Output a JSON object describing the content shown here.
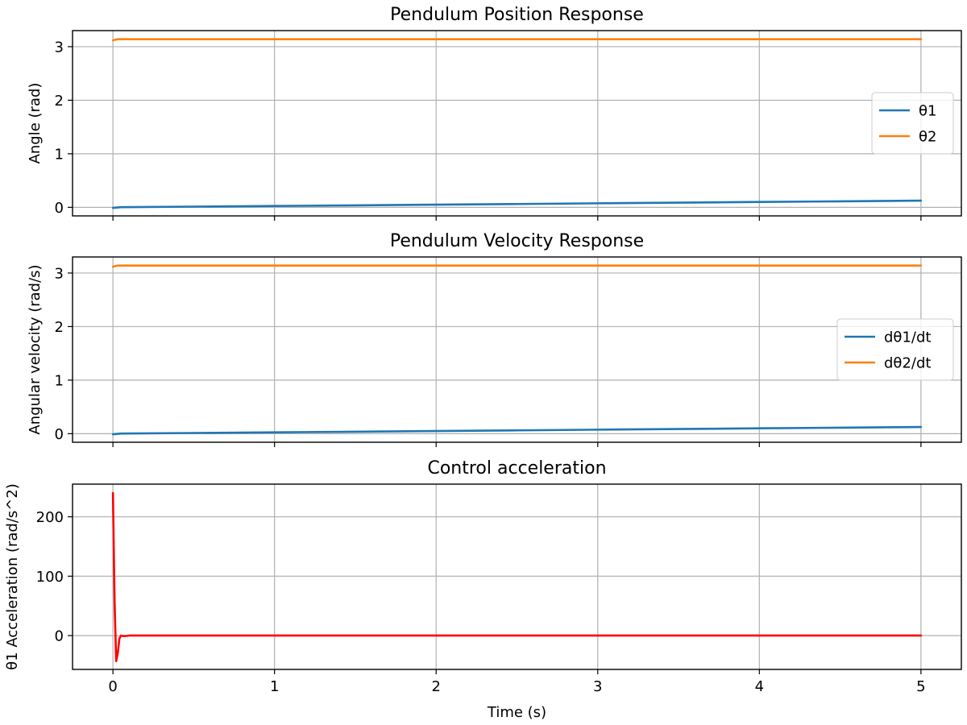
{
  "figure": {
    "xlabel": "Time (s)"
  },
  "chart_data": [
    {
      "type": "line",
      "title": "Pendulum Position Response",
      "xlabel": "",
      "ylabel": "Angle (rad)",
      "xlim": [
        -0.25,
        5.25
      ],
      "ylim": [
        -0.16,
        3.3
      ],
      "xticks": [
        0,
        1,
        2,
        3,
        4,
        5
      ],
      "show_xtick_labels": false,
      "yticks": [
        0,
        1,
        2,
        3
      ],
      "grid": true,
      "legend": {
        "placement": "center-right"
      },
      "series": [
        {
          "name": "θ1",
          "color": "#1f77b4",
          "x": [
            0,
            0.05,
            0.5,
            1,
            1.5,
            2,
            2.5,
            3,
            3.5,
            4,
            4.5,
            5
          ],
          "y": [
            -0.01,
            0.003,
            0.013,
            0.025,
            0.037,
            0.05,
            0.062,
            0.075,
            0.087,
            0.1,
            0.112,
            0.125
          ]
        },
        {
          "name": "θ2",
          "color": "#ff7f0e",
          "x": [
            0,
            0.03,
            1,
            2,
            3,
            4,
            5
          ],
          "y": [
            3.12,
            3.14,
            3.14,
            3.14,
            3.14,
            3.14,
            3.14
          ]
        }
      ]
    },
    {
      "type": "line",
      "title": "Pendulum Velocity Response",
      "xlabel": "",
      "ylabel": "Angular velocity (rad/s)",
      "xlim": [
        -0.25,
        5.25
      ],
      "ylim": [
        -0.16,
        3.3
      ],
      "xticks": [
        0,
        1,
        2,
        3,
        4,
        5
      ],
      "show_xtick_labels": false,
      "yticks": [
        0,
        1,
        2,
        3
      ],
      "grid": true,
      "legend": {
        "placement": "center-right"
      },
      "series": [
        {
          "name": "dθ1/dt",
          "color": "#1f77b4",
          "x": [
            0,
            0.05,
            0.5,
            1,
            1.5,
            2,
            2.5,
            3,
            3.5,
            4,
            4.5,
            5
          ],
          "y": [
            -0.01,
            0.003,
            0.013,
            0.025,
            0.037,
            0.05,
            0.062,
            0.075,
            0.087,
            0.1,
            0.112,
            0.125
          ]
        },
        {
          "name": "dθ2/dt",
          "color": "#ff7f0e",
          "x": [
            0,
            0.03,
            1,
            2,
            3,
            4,
            5
          ],
          "y": [
            3.12,
            3.14,
            3.14,
            3.14,
            3.14,
            3.14,
            3.14
          ]
        }
      ]
    },
    {
      "type": "line",
      "title": "Control acceleration",
      "xlabel": "Time (s)",
      "ylabel": "θ1 Acceleration (rad/s^2)",
      "xlim": [
        -0.25,
        5.25
      ],
      "ylim": [
        -57,
        255
      ],
      "xticks": [
        0,
        1,
        2,
        3,
        4,
        5
      ],
      "show_xtick_labels": true,
      "yticks": [
        0,
        100,
        200
      ],
      "grid": true,
      "legend": null,
      "series": [
        {
          "color": "#ff0000",
          "x": [
            0,
            0.01,
            0.02,
            0.03,
            0.04,
            0.05,
            0.07,
            0.1,
            0.2,
            1,
            2,
            3,
            4,
            5
          ],
          "y": [
            240,
            60,
            -43,
            -30,
            -5,
            0,
            -1,
            0,
            0,
            0,
            0,
            0,
            0,
            0
          ]
        }
      ]
    }
  ]
}
